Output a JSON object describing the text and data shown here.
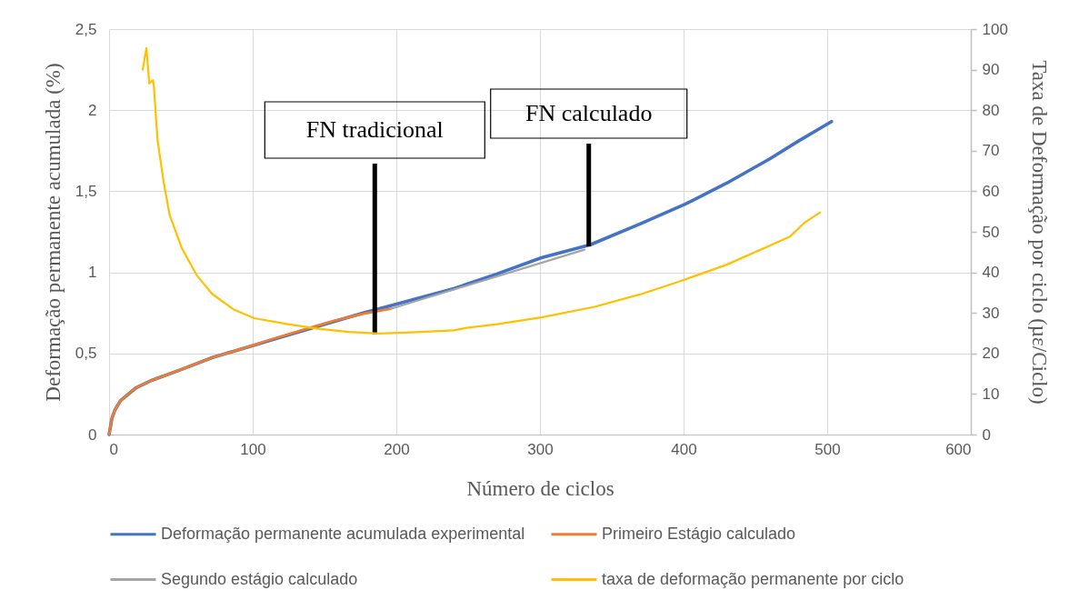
{
  "chart_data": {
    "type": "line",
    "xlabel": "Número de ciclos",
    "ylabel": "Deformação permanente acumulada (%)",
    "y2label": "Taxa de Deformação por ciclo (µε/Ciclo)",
    "xlim": [
      0,
      600
    ],
    "xticks": [
      0,
      100,
      200,
      300,
      400,
      500,
      600
    ],
    "ylim": [
      0,
      2.5
    ],
    "yticks": [
      0,
      {
        "value": 0.5,
        "label": "0,5"
      },
      1,
      {
        "value": 1.5,
        "label": "1,5"
      },
      2,
      {
        "value": 2.5,
        "label": "2,5"
      }
    ],
    "y2lim": [
      0,
      100
    ],
    "y2ticks": [
      0,
      10,
      20,
      30,
      40,
      50,
      60,
      70,
      80,
      90,
      100
    ],
    "grid": true,
    "legend": "bottom",
    "line_style": "solid",
    "marker": "none",
    "series": [
      {
        "name": "Deformação permanente acumulada experimental",
        "color": "#4472c4",
        "x": [
          0,
          2,
          4,
          8,
          19,
          30,
          50,
          72,
          93,
          114,
          135,
          156,
          177,
          196,
          240,
          270,
          301,
          335,
          370,
          401,
          430,
          460,
          480,
          503
        ],
        "values": [
          0,
          0.1,
          0.15,
          0.21,
          0.29,
          0.335,
          0.4,
          0.475,
          0.53,
          0.585,
          0.64,
          0.695,
          0.75,
          0.795,
          0.9,
          0.99,
          1.09,
          1.17,
          1.3,
          1.42,
          1.55,
          1.7,
          1.81,
          1.93
        ]
      },
      {
        "name": "Primeiro Estágio calculado",
        "color": "#ed7d31",
        "x": [
          0,
          2,
          4,
          8,
          19,
          30,
          50,
          72,
          93,
          114,
          135,
          156,
          177,
          196
        ],
        "values": [
          0,
          0.1,
          0.15,
          0.21,
          0.29,
          0.335,
          0.4,
          0.475,
          0.53,
          0.59,
          0.645,
          0.7,
          0.745,
          0.775
        ]
      },
      {
        "name": "Segundo estágio calculado",
        "color": "#a5a5a5",
        "x": [
          196,
          331
        ],
        "values": [
          0.775,
          1.14
        ]
      },
      {
        "name": "taxa de deformação permanente por ciclo",
        "color": "#ffc000",
        "axis": "y2",
        "x": [
          23.4,
          26,
          28,
          30.5,
          31.2,
          33.7,
          38,
          42.2,
          50.6,
          61.2,
          71.7,
          86.5,
          101,
          124.5,
          145.6,
          166.7,
          187.8,
          210,
          240,
          249,
          270,
          301,
          338,
          370,
          396,
          430,
          460,
          474,
          484,
          495
        ],
        "values": [
          90,
          95.3,
          86.6,
          87.4,
          85.9,
          72.8,
          62.3,
          54.1,
          46,
          39.2,
          34.7,
          30.9,
          28.7,
          27.2,
          26.1,
          25.3,
          24.9,
          25.2,
          25.7,
          26.3,
          27.2,
          28.9,
          31.5,
          34.6,
          37.6,
          41.9,
          46.6,
          48.8,
          52.2,
          54.8
        ]
      }
    ],
    "annotations": [
      {
        "text": "FN tradicional",
        "x": 185,
        "y": 0.62
      },
      {
        "text": "FN calculado",
        "x": 334,
        "y": 1.16
      }
    ]
  }
}
